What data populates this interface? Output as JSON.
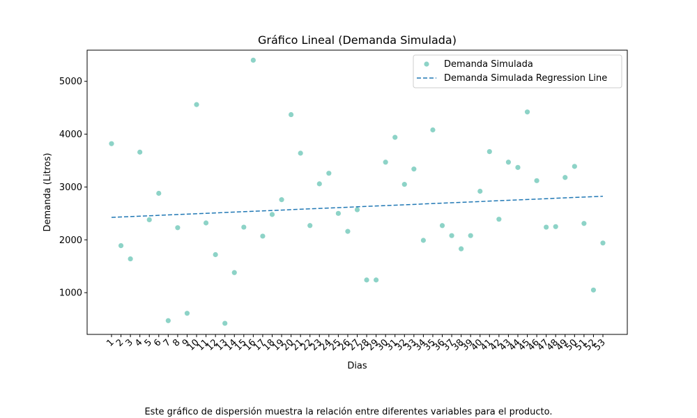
{
  "chart_data": {
    "type": "scatter",
    "title": "Gráfico Lineal (Demanda Simulada)",
    "xlabel": "Dias",
    "ylabel": "Demanda (Litros)",
    "x": [
      1,
      2,
      3,
      4,
      5,
      6,
      7,
      8,
      9,
      10,
      11,
      12,
      13,
      14,
      15,
      16,
      17,
      18,
      19,
      20,
      21,
      22,
      23,
      24,
      25,
      26,
      27,
      28,
      29,
      30,
      31,
      32,
      33,
      34,
      35,
      36,
      37,
      38,
      39,
      40,
      41,
      42,
      43,
      44,
      45,
      46,
      47,
      48,
      49,
      50,
      51,
      52,
      53
    ],
    "x_tick_labels": [
      "1",
      "2",
      "3",
      "4",
      "5",
      "6",
      "7",
      "8",
      "9",
      "10",
      "11",
      "12",
      "13",
      "14",
      "15",
      "16",
      "17",
      "18",
      "19",
      "20",
      "21",
      "22",
      "23",
      "24",
      "25",
      "26",
      "27",
      "28",
      "29",
      "30",
      "31",
      "32",
      "33",
      "34",
      "35",
      "36",
      "37",
      "38",
      "39",
      "40",
      "41",
      "42",
      "43",
      "44",
      "45",
      "46",
      "47",
      "48",
      "49",
      "50",
      "51",
      "52",
      "53"
    ],
    "ylim": [
      210,
      5590
    ],
    "y_ticks": [
      1000,
      2000,
      3000,
      4000,
      5000
    ],
    "y_tick_labels": [
      "1000",
      "2000",
      "3000",
      "4000",
      "5000"
    ],
    "grid": false,
    "legend_position": "top-right",
    "series": [
      {
        "name": "Demanda Simulada",
        "kind": "scatter",
        "color": "#8dd3c7",
        "values": [
          3820,
          1890,
          1640,
          3660,
          2380,
          2880,
          470,
          2230,
          610,
          4560,
          2320,
          1720,
          420,
          1380,
          2240,
          5400,
          2070,
          2480,
          2760,
          4370,
          3640,
          2270,
          3060,
          3260,
          2500,
          2160,
          2570,
          1240,
          1240,
          3470,
          3940,
          3050,
          3340,
          1990,
          4080,
          2270,
          2080,
          1830,
          2080,
          2920,
          3670,
          2390,
          3470,
          3370,
          4420,
          3120,
          2240,
          2250,
          3180,
          3390,
          2310,
          1050,
          1940
        ]
      },
      {
        "name": "Demanda Simulada Regression Line",
        "kind": "line",
        "style": "dashed",
        "color": "#1f77b4",
        "endpoints": [
          [
            1,
            2425
          ],
          [
            53,
            2825
          ]
        ]
      }
    ],
    "caption": "Este gráfico de dispersión muestra la relación entre diferentes variables para el producto."
  }
}
